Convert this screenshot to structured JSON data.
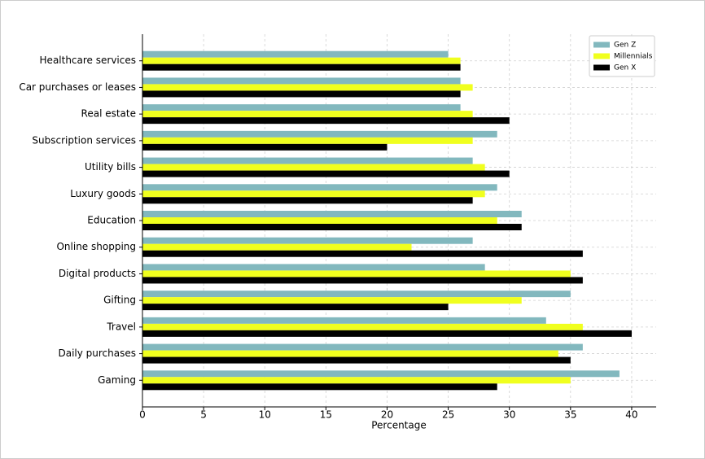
{
  "chart_data": {
    "type": "barh",
    "xlabel": "Percentage",
    "categories": [
      "Healthcare services",
      "Car purchases or leases",
      "Real estate",
      "Subscription services",
      "Utility bills",
      "Luxury goods",
      "Education",
      "Online shopping",
      "Digital products",
      "Gifting",
      "Travel",
      "Daily purchases",
      "Gaming"
    ],
    "series": [
      {
        "name": "Gen Z",
        "color": "#82b8be",
        "values": [
          25,
          26,
          26,
          29,
          27,
          29,
          31,
          27,
          28,
          35,
          33,
          36,
          39
        ]
      },
      {
        "name": "Millennials",
        "color": "#f0ff1e",
        "values": [
          26,
          27,
          27,
          27,
          28,
          28,
          29,
          22,
          35,
          31,
          36,
          34,
          35
        ]
      },
      {
        "name": "Gen X",
        "color": "#000000",
        "values": [
          26,
          26,
          30,
          20,
          30,
          27,
          31,
          36,
          36,
          25,
          40,
          35,
          29
        ]
      }
    ],
    "xlim": [
      0,
      42
    ],
    "xticks": [
      0,
      5,
      10,
      15,
      20,
      25,
      30,
      35,
      40
    ],
    "grid": true,
    "legend": "upper right"
  }
}
